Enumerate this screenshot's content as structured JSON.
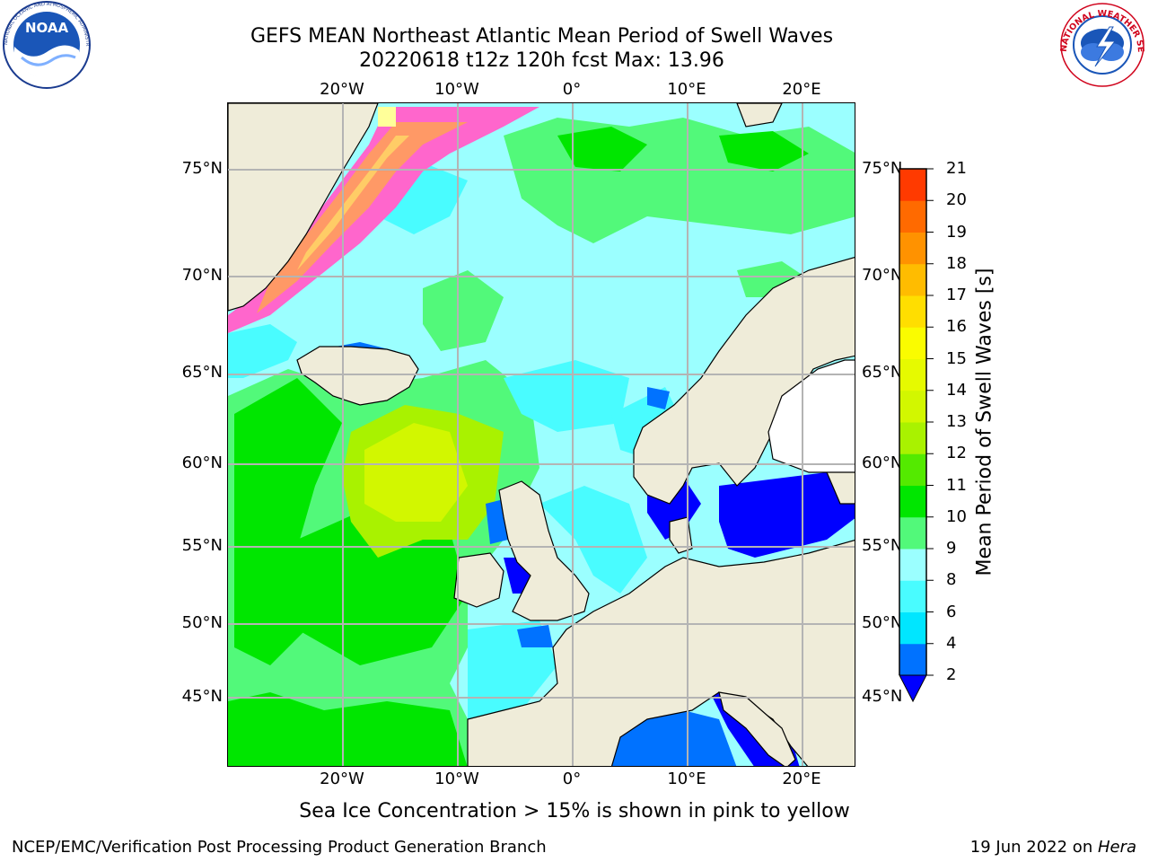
{
  "header": {
    "title_line1": "GEFS MEAN Northeast Atlantic Mean Period of Swell Waves",
    "title_line2": "20220618 t12z 120h fcst   Max: 13.96"
  },
  "logos": {
    "left": {
      "name": "noaa-logo",
      "text": "NOAA",
      "ring_text": "NATIONAL OCEANIC AND ATMOSPHERIC ADMINISTRATION · U.S. DEPARTMENT OF COMMERCE"
    },
    "right": {
      "name": "nws-logo",
      "ring_text": "NATIONAL WEATHER SERVICE"
    }
  },
  "map": {
    "lon_labels": [
      "20°W",
      "10°W",
      "0°",
      "10°E",
      "20°E"
    ],
    "lat_labels": [
      "75°N",
      "70°N",
      "65°N",
      "60°N",
      "55°N",
      "50°N",
      "45°N"
    ],
    "colors": {
      "land": "#efecd9",
      "gridline": "#b4b4b4",
      "coast": "#000000",
      "ice": [
        "#ff66cc",
        "#ff9966",
        "#ffcc66",
        "#ffff99"
      ]
    }
  },
  "colorbar": {
    "title": "Mean Period of Swell Waves [s]",
    "ticks": [
      "2",
      "4",
      "6",
      "8",
      "9",
      "10",
      "11",
      "12",
      "13",
      "14",
      "15",
      "16",
      "17",
      "18",
      "19",
      "20",
      "21"
    ],
    "colors": [
      "#0072ff",
      "#00e6ff",
      "#49fcff",
      "#9bffff",
      "#52f97a",
      "#00e600",
      "#54ea00",
      "#a9f200",
      "#d2f700",
      "#e6fa00",
      "#fafc00",
      "#ffde00",
      "#ffbc00",
      "#ff9200",
      "#ff6a00",
      "#ff3a00"
    ],
    "extend_color": "#0000ff"
  },
  "footer": {
    "subcaption": "Sea Ice Concentration > 15% is shown in pink to yellow",
    "credit": "NCEP/EMC/Verification Post Processing Product Generation Branch",
    "date_prefix": "19 Jun 2022 on ",
    "date_host": "Hera"
  }
}
